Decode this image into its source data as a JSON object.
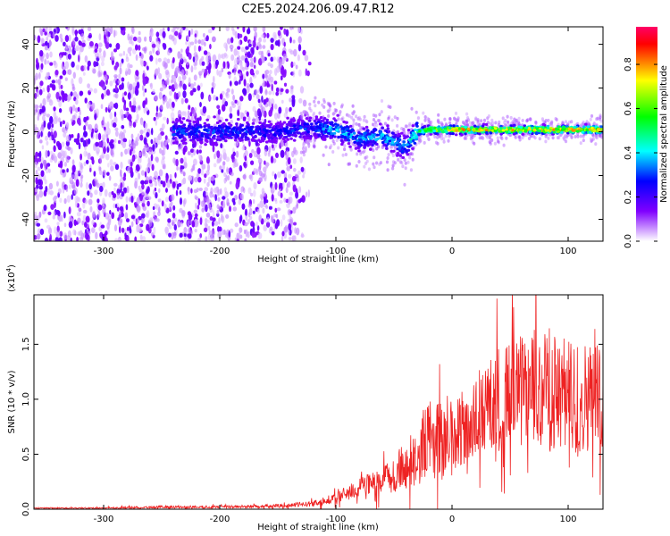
{
  "title": "C2E5.2024.206.09.47.R12",
  "colors": {
    "spectrum_low": "#7a00ff",
    "snr_line": "#ee2222",
    "colorbar": [
      "#ff0000",
      "#ffff00",
      "#00ff00",
      "#00ffff",
      "#0000ff",
      "#8000ff",
      "#ffffff"
    ]
  },
  "chart_data": [
    {
      "type": "heatmap",
      "title": "C2E5.2024.206.09.47.R12",
      "xlabel": "Height of straight line (km)",
      "ylabel": "Frequency (Hz)",
      "xlim": [
        -360,
        130
      ],
      "ylim": [
        -50,
        48
      ],
      "x_ticks": [
        -300,
        -200,
        -100,
        0,
        100
      ],
      "y_ticks": [
        -40,
        -20,
        0,
        20,
        40
      ],
      "colorbar": {
        "label": "Normalized spectral amplitude",
        "range": [
          0,
          0.97
        ],
        "ticks": [
          0.0,
          0.2,
          0.4,
          0.6,
          0.8
        ]
      },
      "ridge": {
        "description_x": [
          -240,
          -200,
          -150,
          -120,
          -100,
          -80,
          -60,
          -40,
          -30,
          -20,
          0,
          50,
          100,
          130
        ],
        "center_hz": [
          0,
          0,
          0,
          2,
          1,
          -3,
          -2,
          -7,
          0,
          1,
          1,
          1,
          1,
          1
        ],
        "peak_amplitude": [
          0.35,
          0.35,
          0.3,
          0.35,
          0.45,
          0.4,
          0.45,
          0.4,
          0.6,
          0.7,
          0.9,
          0.9,
          0.9,
          0.85
        ]
      }
    },
    {
      "type": "line",
      "xlabel": "Height of straight line (km)",
      "ylabel": "SNR (10 * v/v)",
      "y_scale_label": "(x10",
      "y_scale_exponent": "4",
      "xlim": [
        -360,
        130
      ],
      "ylim": [
        0,
        1.95
      ],
      "x_ticks": [
        -300,
        -200,
        -100,
        0,
        100
      ],
      "y_ticks": [
        0.0,
        0.5,
        1.0,
        1.5
      ],
      "y_tick_labels": [
        "0.0",
        "0.5",
        "1.0",
        "1.5"
      ],
      "series": [
        {
          "x": [
            -360,
            -300,
            -250,
            -200,
            -150,
            -120,
            -100,
            -80,
            -60,
            -40,
            -30,
            -20,
            -10,
            0,
            20,
            40,
            60,
            80,
            100,
            130
          ],
          "y": [
            0.01,
            0.01,
            0.02,
            0.02,
            0.03,
            0.05,
            0.1,
            0.2,
            0.25,
            0.4,
            0.5,
            0.65,
            0.6,
            0.65,
            0.8,
            1.0,
            1.05,
            1.1,
            1.0,
            1.05
          ],
          "spread": [
            0.005,
            0.005,
            0.01,
            0.01,
            0.015,
            0.02,
            0.04,
            0.08,
            0.1,
            0.18,
            0.25,
            0.3,
            0.3,
            0.3,
            0.3,
            0.4,
            0.45,
            0.5,
            0.45,
            0.4
          ]
        }
      ]
    }
  ]
}
